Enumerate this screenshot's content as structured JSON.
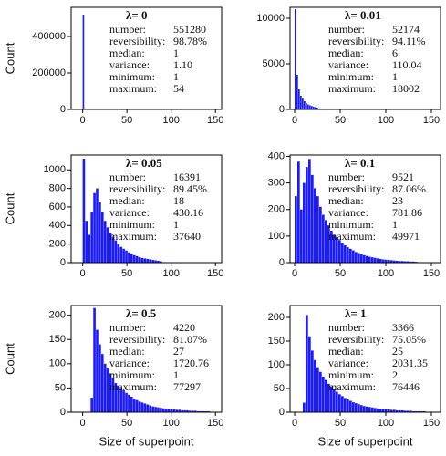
{
  "chart_data": [
    {
      "type": "histogram",
      "title": "λ= 0",
      "ylabel": "Count",
      "color": "#1a1aff",
      "bins": [
        0,
        2
      ],
      "values": [
        520000
      ],
      "xlim": [
        -13,
        157
      ],
      "xticks": [
        0,
        50,
        100,
        150
      ],
      "ylim": [
        0,
        560000
      ],
      "yticks": [
        0,
        200000,
        400000
      ],
      "stats": [
        {
          "label": "number:",
          "value": "551280"
        },
        {
          "label": "reversibility:",
          "value": "98.78%"
        },
        {
          "label": "median:",
          "value": "1"
        },
        {
          "label": "variance:",
          "value": "1.10"
        },
        {
          "label": "minimum:",
          "value": "1"
        },
        {
          "label": "maximum:",
          "value": "54"
        }
      ]
    },
    {
      "type": "histogram",
      "title": "λ= 0.01",
      "color": "#1a1aff",
      "bins": [
        0,
        2,
        4,
        6,
        8,
        10,
        12,
        14,
        16,
        18,
        20,
        22,
        24,
        26,
        28
      ],
      "values": [
        11000,
        3800,
        2200,
        1500,
        1200,
        900,
        700,
        550,
        450,
        380,
        300,
        250,
        200,
        120
      ],
      "xlim": [
        -5,
        160
      ],
      "xticks": [
        0,
        50,
        100,
        150
      ],
      "ylim": [
        0,
        11200
      ],
      "yticks": [
        0,
        5000,
        10000
      ],
      "stats": [
        {
          "label": "number:",
          "value": "52174"
        },
        {
          "label": "reversibility:",
          "value": "94.11%"
        },
        {
          "label": "median:",
          "value": "6"
        },
        {
          "label": "variance:",
          "value": "110.04"
        },
        {
          "label": "minimum:",
          "value": "1"
        },
        {
          "label": "maximum:",
          "value": "18002"
        }
      ]
    },
    {
      "type": "histogram",
      "title": "λ= 0.05",
      "ylabel": "Count",
      "color": "#1a1aff",
      "bins": [
        0,
        3,
        6,
        9,
        12,
        15,
        18,
        21,
        24,
        27,
        30,
        33,
        36,
        39,
        42,
        45,
        48,
        51,
        54,
        57,
        60,
        63,
        66,
        69,
        72,
        75,
        78,
        81,
        84,
        87,
        90
      ],
      "values": [
        1120,
        450,
        300,
        550,
        750,
        800,
        650,
        550,
        450,
        380,
        320,
        280,
        240,
        200,
        170,
        150,
        130,
        110,
        95,
        80,
        70,
        60,
        50,
        45,
        40,
        35,
        30,
        25,
        20,
        15
      ],
      "xlim": [
        -13,
        157
      ],
      "xticks": [
        0,
        50,
        100,
        150
      ],
      "ylim": [
        0,
        1160
      ],
      "yticks": [
        0,
        200,
        400,
        600,
        800,
        1000
      ],
      "stats": [
        {
          "label": "number:",
          "value": "16391"
        },
        {
          "label": "reversibility:",
          "value": "89.45%"
        },
        {
          "label": "median:",
          "value": "18"
        },
        {
          "label": "variance:",
          "value": "430.16"
        },
        {
          "label": "minimum:",
          "value": "1"
        },
        {
          "label": "maximum:",
          "value": "37640"
        }
      ]
    },
    {
      "type": "histogram",
      "title": "λ= 0.1",
      "color": "#1a1aff",
      "bins": [
        0,
        3,
        6,
        9,
        12,
        15,
        18,
        21,
        24,
        27,
        30,
        33,
        36,
        39,
        42,
        45,
        48,
        51,
        54,
        57,
        60,
        63,
        66,
        69,
        72,
        75,
        78,
        81,
        84,
        87,
        90,
        93,
        96,
        99,
        102,
        105,
        108,
        111,
        114,
        117,
        120,
        123,
        126,
        129,
        132,
        135
      ],
      "values": [
        250,
        380,
        200,
        300,
        360,
        390,
        330,
        280,
        250,
        210,
        180,
        160,
        140,
        120,
        105,
        95,
        85,
        75,
        65,
        58,
        52,
        46,
        40,
        36,
        32,
        28,
        25,
        22,
        20,
        18,
        16,
        14,
        12,
        11,
        10,
        9,
        8,
        7,
        6,
        6,
        5,
        5,
        4,
        4,
        3
      ],
      "xlim": [
        -5,
        160
      ],
      "xticks": [
        0,
        50,
        100,
        150
      ],
      "ylim": [
        0,
        405
      ],
      "yticks": [
        0,
        100,
        200,
        300,
        400
      ],
      "stats": [
        {
          "label": "number:",
          "value": "9521"
        },
        {
          "label": "reversibility:",
          "value": "87.06%"
        },
        {
          "label": "median:",
          "value": "23"
        },
        {
          "label": "variance:",
          "value": "781.86"
        },
        {
          "label": "minimum:",
          "value": "1"
        },
        {
          "label": "maximum:",
          "value": "49971"
        }
      ]
    },
    {
      "type": "histogram",
      "title": "λ= 0.5",
      "ylabel": "Count",
      "xlabel": "Size of superpoint",
      "color": "#1a1aff",
      "bins": [
        0,
        3,
        6,
        9,
        12,
        15,
        18,
        21,
        24,
        27,
        30,
        33,
        36,
        39,
        42,
        45,
        48,
        51,
        54,
        57,
        60,
        63,
        66,
        69,
        72,
        75,
        78,
        81,
        84,
        87,
        90,
        93,
        96,
        99,
        102,
        105,
        108,
        111,
        114,
        117,
        120,
        123,
        126,
        129,
        132,
        135,
        138,
        141,
        144,
        147,
        150
      ],
      "values": [
        0,
        0,
        0,
        30,
        215,
        170,
        140,
        120,
        100,
        90,
        80,
        70,
        60,
        55,
        50,
        45,
        40,
        36,
        32,
        28,
        25,
        22,
        20,
        18,
        16,
        14,
        12,
        11,
        10,
        9,
        8,
        7,
        7,
        6,
        6,
        5,
        5,
        4,
        4,
        4,
        3,
        3,
        3,
        2,
        2,
        2,
        2,
        2,
        1,
        1
      ],
      "xlim": [
        -13,
        157
      ],
      "xticks": [
        0,
        50,
        100,
        150
      ],
      "ylim": [
        0,
        220
      ],
      "yticks": [
        0,
        50,
        100,
        150,
        200
      ],
      "stats": [
        {
          "label": "number:",
          "value": "4220"
        },
        {
          "label": "reversibility:",
          "value": "81.07%"
        },
        {
          "label": "median:",
          "value": "27"
        },
        {
          "label": "variance:",
          "value": "1720.76"
        },
        {
          "label": "minimum:",
          "value": "1"
        },
        {
          "label": "maximum:",
          "value": "77297"
        }
      ]
    },
    {
      "type": "histogram",
      "title": "λ= 1",
      "xlabel": "Size of superpoint",
      "color": "#1a1aff",
      "bins": [
        0,
        3,
        6,
        9,
        12,
        15,
        18,
        21,
        24,
        27,
        30,
        33,
        36,
        39,
        42,
        45,
        48,
        51,
        54,
        57,
        60,
        63,
        66,
        69,
        72,
        75,
        78,
        81,
        84,
        87,
        90,
        93,
        96,
        99,
        102,
        105,
        108,
        111,
        114,
        117,
        120,
        123,
        126,
        129,
        132,
        135,
        138,
        141,
        144,
        147,
        150
      ],
      "values": [
        0,
        0,
        0,
        20,
        205,
        160,
        130,
        110,
        95,
        85,
        75,
        68,
        60,
        54,
        48,
        43,
        38,
        34,
        30,
        27,
        24,
        21,
        19,
        17,
        15,
        13,
        12,
        11,
        10,
        9,
        8,
        7,
        7,
        6,
        6,
        5,
        5,
        4,
        4,
        4,
        3,
        3,
        3,
        2,
        2,
        2,
        2,
        2,
        1,
        1
      ],
      "xlim": [
        -5,
        160
      ],
      "xticks": [
        0,
        50,
        100,
        150
      ],
      "ylim": [
        0,
        225
      ],
      "yticks": [
        0,
        50,
        100,
        150,
        200
      ],
      "stats": [
        {
          "label": "number:",
          "value": "3366"
        },
        {
          "label": "reversibility:",
          "value": "75.05%"
        },
        {
          "label": "median:",
          "value": "25"
        },
        {
          "label": "variance:",
          "value": "2031.35"
        },
        {
          "label": "minimum:",
          "value": "2"
        },
        {
          "label": "maximum:",
          "value": "76446"
        }
      ]
    }
  ]
}
